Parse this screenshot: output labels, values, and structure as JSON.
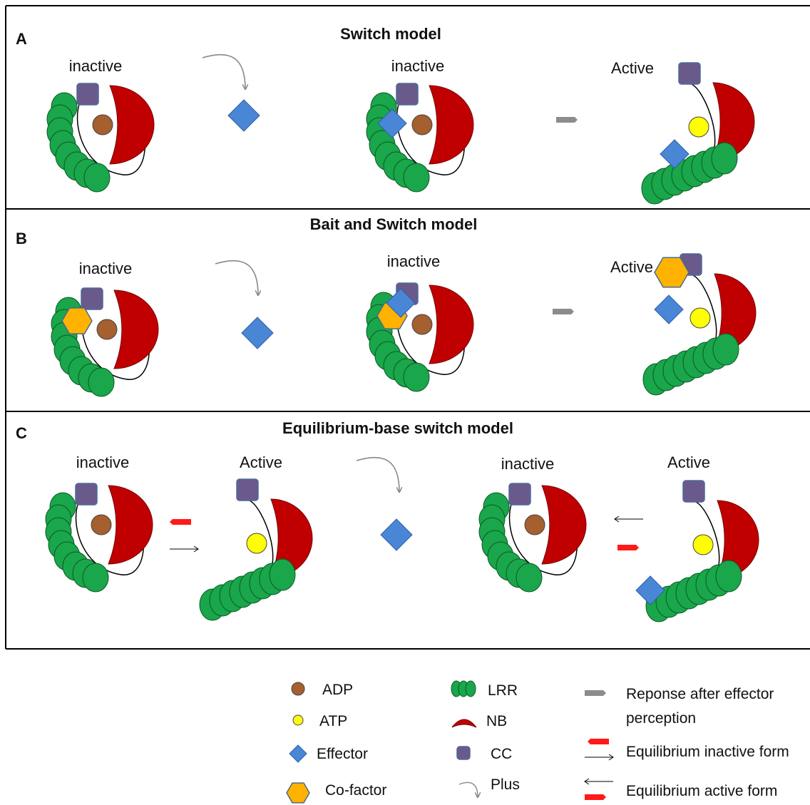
{
  "panels": {
    "a": {
      "letter": "A",
      "title": "Switch model",
      "labels": [
        "inactive",
        "inactive",
        "Active"
      ]
    },
    "b": {
      "letter": "B",
      "title": "Bait and Switch model",
      "labels": [
        "inactive",
        "inactive",
        "Active"
      ]
    },
    "c": {
      "letter": "C",
      "title": "Equilibrium-base switch model",
      "labels": [
        "inactive",
        "Active",
        "inactive",
        "Active"
      ]
    }
  },
  "legend": {
    "adp": "ADP",
    "atp": "ATP",
    "effector": "Effector",
    "cofactor": "Co-factor",
    "lrr": "LRR",
    "nb": "NB",
    "cc": "CC",
    "plus": "Plus",
    "response_line1": "Reponse after  effector",
    "response_line2": "perception",
    "eq_inactive": "Equilibrium  inactive form",
    "eq_active": "Equilibrium  active form"
  },
  "colors": {
    "lrr": "#1aa64a",
    "nb": "#c00000",
    "cc": "#6a5a8c",
    "adp": "#a65f2e",
    "atp": "#ffff00",
    "effector": "#4a86d6",
    "cofactor": "#ffb300",
    "response_arrow": "#8c8c8c",
    "eq_arrow": "#ff1a1a"
  }
}
